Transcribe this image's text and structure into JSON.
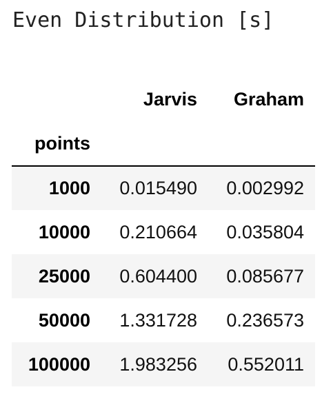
{
  "caption": "Even Distribution [s]",
  "table": {
    "columns": [
      "Jarvis",
      "Graham"
    ],
    "index_name": "points",
    "rows": [
      {
        "points": "1000",
        "Jarvis": "0.015490",
        "Graham": "0.002992"
      },
      {
        "points": "10000",
        "Jarvis": "0.210664",
        "Graham": "0.035804"
      },
      {
        "points": "25000",
        "Jarvis": "0.604400",
        "Graham": "0.085677"
      },
      {
        "points": "50000",
        "Jarvis": "1.331728",
        "Graham": "0.236573"
      },
      {
        "points": "100000",
        "Jarvis": "1.983256",
        "Graham": "0.552011"
      }
    ]
  },
  "colors": {
    "stripe": "#f5f5f5",
    "rule": "#000000"
  }
}
